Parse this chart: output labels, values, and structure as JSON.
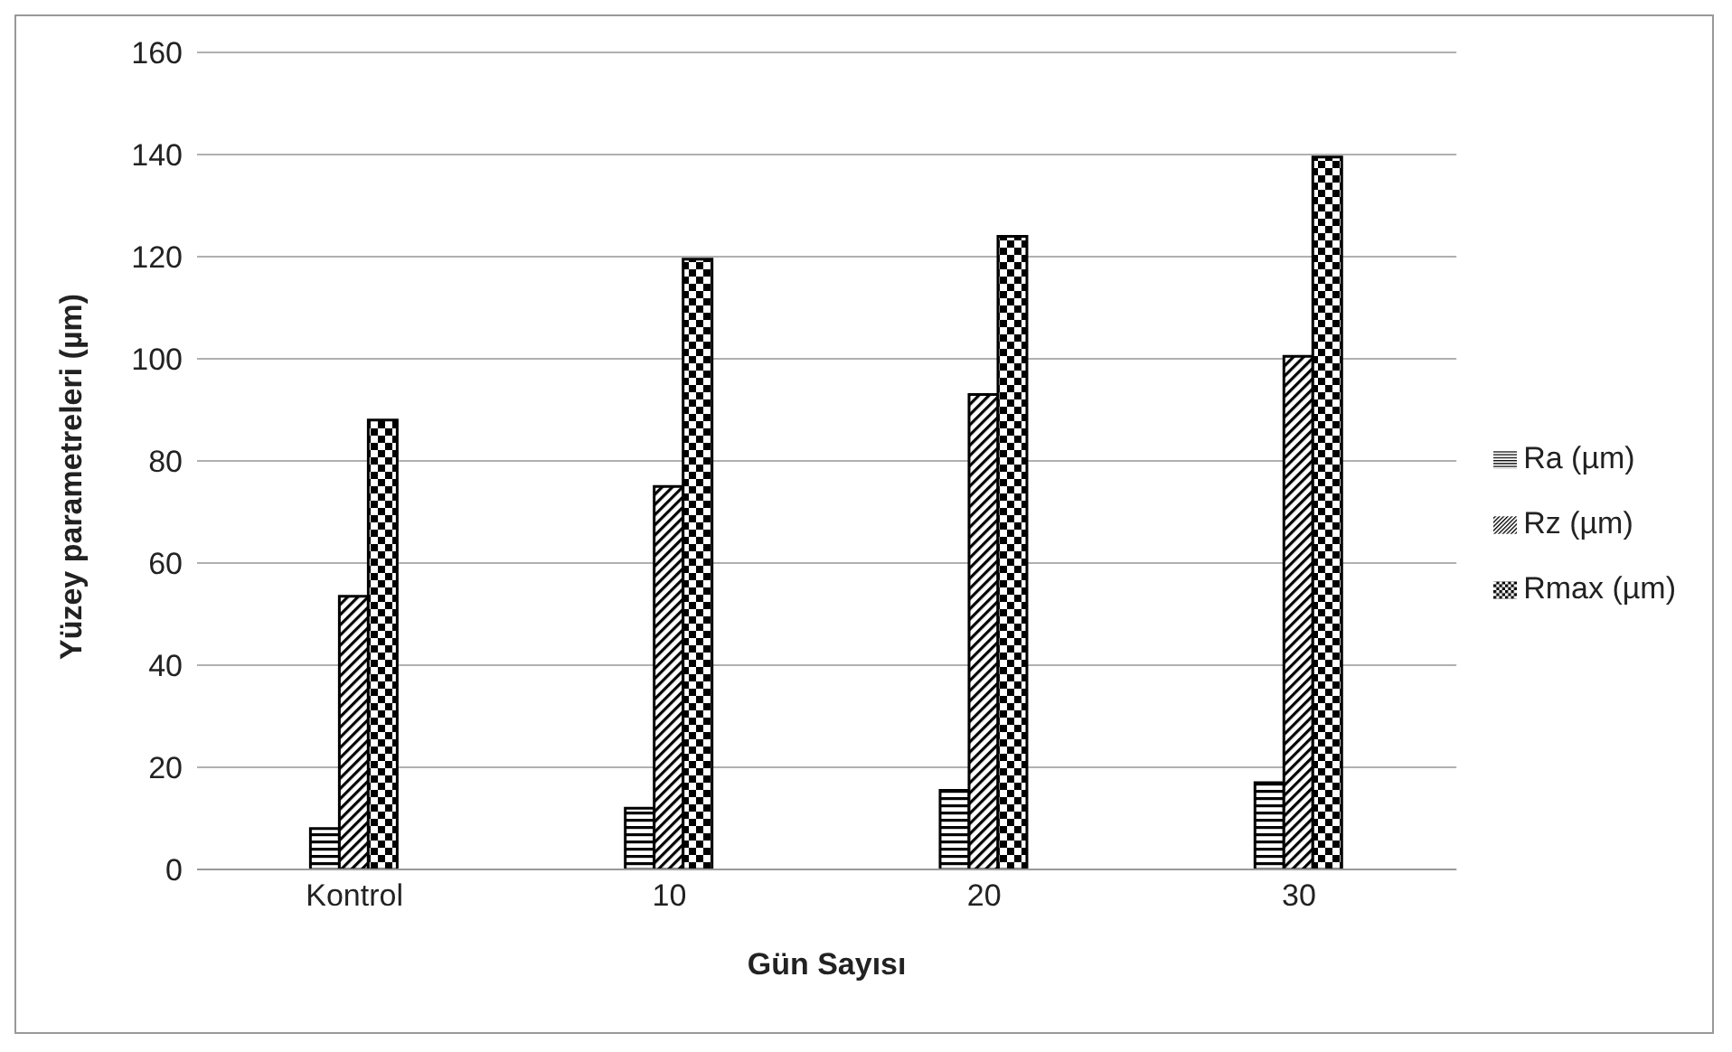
{
  "chart_data": {
    "type": "bar",
    "xlabel": "Gün Sayısı",
    "ylabel": "Yüzey parametreleri (µm)",
    "categories": [
      "Kontrol",
      "10",
      "20",
      "30"
    ],
    "series": [
      {
        "name": "Ra (µm)",
        "color": "#000000",
        "values": [
          8,
          12,
          15.5,
          17
        ]
      },
      {
        "name": "Rz (µm)",
        "color": "#000000",
        "values": [
          53.5,
          75,
          93,
          100.5
        ]
      },
      {
        "name": "Rmax (µm)",
        "color": "#000000",
        "values": [
          88,
          119.5,
          124,
          139.5
        ]
      }
    ],
    "ylim": [
      0,
      160
    ],
    "yticks": [
      0,
      20,
      40,
      60,
      80,
      100,
      120,
      140,
      160
    ],
    "grid": "y",
    "legend": "right"
  }
}
